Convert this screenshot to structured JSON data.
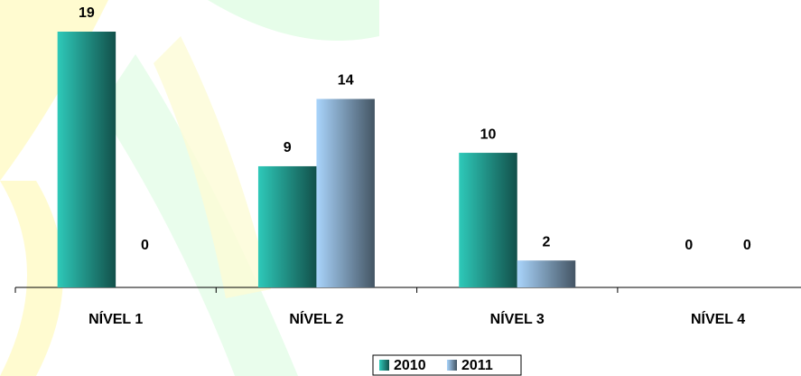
{
  "chart_data": {
    "type": "bar",
    "categories": [
      "NÍVEL 1",
      "NÍVEL 2",
      "NÍVEL 3",
      "NÍVEL 4"
    ],
    "series": [
      {
        "name": "2010",
        "color": "#2ec9b9",
        "values": [
          19,
          9,
          10,
          0
        ]
      },
      {
        "name": "2011",
        "color": "#a9d4fb",
        "values": [
          0,
          14,
          2,
          0
        ]
      }
    ],
    "ylim": [
      0,
      19
    ],
    "legend": "bottom"
  }
}
